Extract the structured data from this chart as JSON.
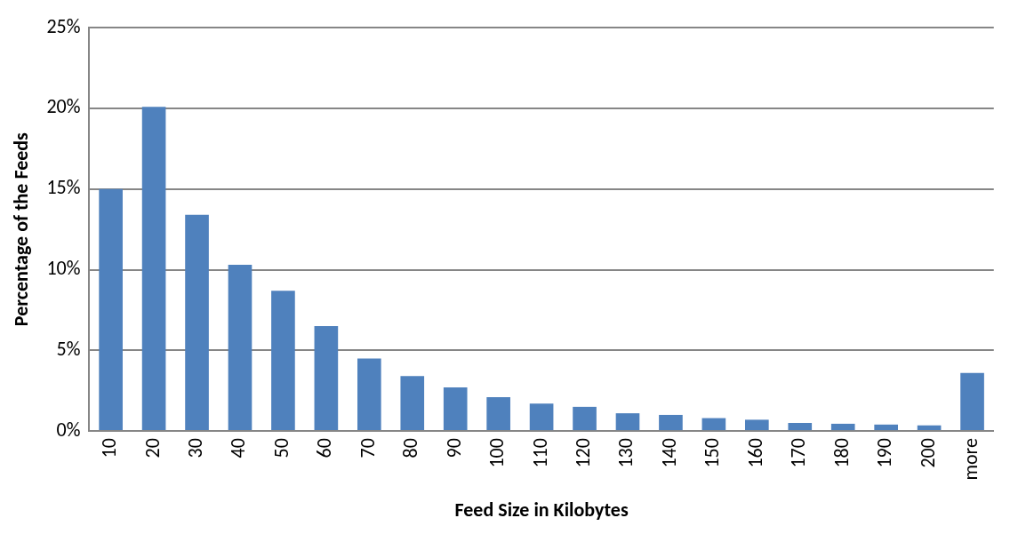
{
  "chart_data": {
    "type": "bar",
    "xlabel": "Feed Size in Kilobytes",
    "ylabel": "Percentage of the Feeds",
    "categories": [
      "10",
      "20",
      "30",
      "40",
      "50",
      "60",
      "70",
      "80",
      "90",
      "100",
      "110",
      "120",
      "130",
      "140",
      "150",
      "160",
      "170",
      "180",
      "190",
      "200",
      "more"
    ],
    "values": [
      15.0,
      20.1,
      13.4,
      10.3,
      8.7,
      6.5,
      4.5,
      3.4,
      2.7,
      2.1,
      1.7,
      1.5,
      1.1,
      1.0,
      0.8,
      0.7,
      0.5,
      0.45,
      0.4,
      0.35,
      3.6
    ],
    "color": "#4f81bd",
    "ylim": [
      0,
      25
    ],
    "yticks": [
      {
        "value": 0,
        "label": "0%"
      },
      {
        "value": 5,
        "label": "5%"
      },
      {
        "value": 10,
        "label": "10%"
      },
      {
        "value": 15,
        "label": "15%"
      },
      {
        "value": 20,
        "label": "20%"
      },
      {
        "value": 25,
        "label": "25%"
      }
    ],
    "grid": "y",
    "legend": false
  }
}
